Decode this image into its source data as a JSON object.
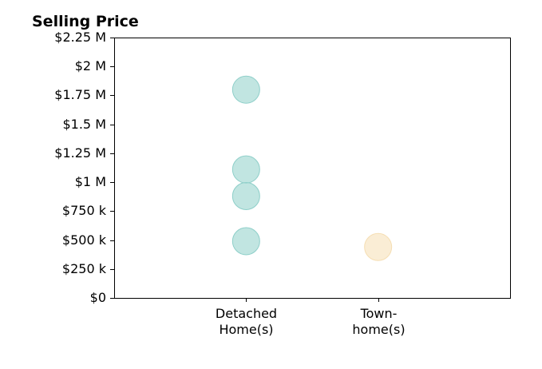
{
  "chart_data": {
    "type": "scatter",
    "title": "Selling Price",
    "xlabel": "",
    "ylabel": "",
    "categories": [
      [
        "Detached",
        "Home(s)"
      ],
      [
        "Town-",
        "home(s)"
      ]
    ],
    "ylim": [
      0,
      2250000
    ],
    "yticks": [
      0,
      250000,
      500000,
      750000,
      1000000,
      1250000,
      1500000,
      1750000,
      2000000,
      2250000
    ],
    "yticklabels": [
      "$0",
      "$250 k",
      "$500 k",
      "$750 k",
      "$1 M",
      "$1.25 M",
      "$1.5 M",
      "$1.75 M",
      "$2 M",
      "$2.25 M"
    ],
    "grid": false,
    "series": [
      {
        "category_index": 0,
        "color": "#8ecfc9",
        "values": [
          1800000,
          1110000,
          880000,
          490000
        ]
      },
      {
        "category_index": 1,
        "color": "#f5deb3",
        "values": [
          440000
        ]
      }
    ]
  }
}
